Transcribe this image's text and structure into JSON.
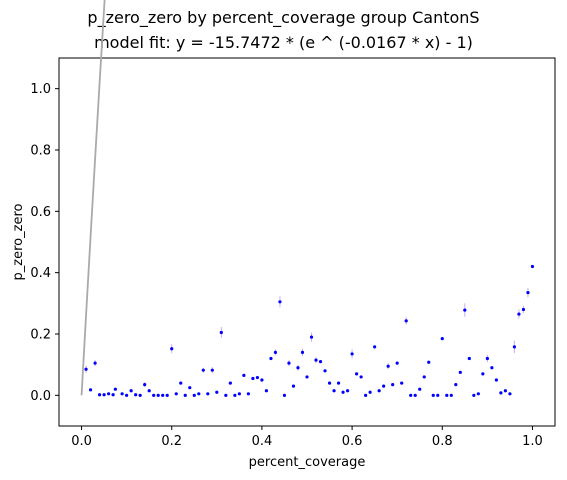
{
  "chart_data": {
    "type": "scatter",
    "title": "p_zero_zero by percent_coverage group CantonS",
    "subtitle": "model fit: y = -15.7472 * (e ^ (-0.0167 * x) - 1)",
    "xlabel": "percent_coverage",
    "ylabel": "p_zero_zero",
    "xlim": [
      -0.05,
      1.05
    ],
    "ylim": [
      -0.1,
      1.1
    ],
    "xticks": [
      0.0,
      0.2,
      0.4,
      0.6,
      0.8,
      1.0
    ],
    "yticks": [
      0.0,
      0.2,
      0.4,
      0.6,
      0.8,
      1.0
    ],
    "xtick_labels": [
      "0.0",
      "0.2",
      "0.4",
      "0.6",
      "0.8",
      "1.0"
    ],
    "ytick_labels": [
      "0.0",
      "0.2",
      "0.4",
      "0.6",
      "0.8",
      "1.0"
    ],
    "grid": false,
    "point_color": "#0000ff",
    "error_color": "#ccaaff",
    "fit_color": "#aaaaaa",
    "fit": {
      "a": -15.7472,
      "b": -0.0167,
      "x_range": [
        0.0,
        1.0
      ]
    },
    "points": [
      {
        "x": 0.01,
        "y": 0.085,
        "err": 0.012
      },
      {
        "x": 0.02,
        "y": 0.018,
        "err": 0.0
      },
      {
        "x": 0.03,
        "y": 0.105,
        "err": 0.01
      },
      {
        "x": 0.04,
        "y": 0.002,
        "err": 0.0
      },
      {
        "x": 0.05,
        "y": 0.002,
        "err": 0.0
      },
      {
        "x": 0.06,
        "y": 0.005,
        "err": 0.0
      },
      {
        "x": 0.07,
        "y": 0.002,
        "err": 0.0
      },
      {
        "x": 0.075,
        "y": 0.02,
        "err": 0.0
      },
      {
        "x": 0.09,
        "y": 0.005,
        "err": 0.0
      },
      {
        "x": 0.1,
        "y": 0.0,
        "err": 0.0
      },
      {
        "x": 0.11,
        "y": 0.015,
        "err": 0.0
      },
      {
        "x": 0.12,
        "y": 0.002,
        "err": 0.0
      },
      {
        "x": 0.13,
        "y": 0.0,
        "err": 0.0
      },
      {
        "x": 0.14,
        "y": 0.035,
        "err": 0.008
      },
      {
        "x": 0.15,
        "y": 0.015,
        "err": 0.0
      },
      {
        "x": 0.16,
        "y": 0.0,
        "err": 0.0
      },
      {
        "x": 0.17,
        "y": 0.0,
        "err": 0.0
      },
      {
        "x": 0.18,
        "y": 0.0,
        "err": 0.0
      },
      {
        "x": 0.19,
        "y": 0.0,
        "err": 0.0
      },
      {
        "x": 0.2,
        "y": 0.152,
        "err": 0.015
      },
      {
        "x": 0.21,
        "y": 0.005,
        "err": 0.0
      },
      {
        "x": 0.22,
        "y": 0.04,
        "err": 0.0
      },
      {
        "x": 0.23,
        "y": 0.0,
        "err": 0.0
      },
      {
        "x": 0.24,
        "y": 0.025,
        "err": 0.0
      },
      {
        "x": 0.25,
        "y": 0.0,
        "err": 0.0
      },
      {
        "x": 0.26,
        "y": 0.005,
        "err": 0.0
      },
      {
        "x": 0.27,
        "y": 0.082,
        "err": 0.008
      },
      {
        "x": 0.28,
        "y": 0.005,
        "err": 0.0
      },
      {
        "x": 0.29,
        "y": 0.082,
        "err": 0.01
      },
      {
        "x": 0.3,
        "y": 0.01,
        "err": 0.0
      },
      {
        "x": 0.31,
        "y": 0.205,
        "err": 0.018
      },
      {
        "x": 0.32,
        "y": 0.0,
        "err": 0.0
      },
      {
        "x": 0.33,
        "y": 0.04,
        "err": 0.0
      },
      {
        "x": 0.34,
        "y": 0.0,
        "err": 0.0
      },
      {
        "x": 0.35,
        "y": 0.005,
        "err": 0.0
      },
      {
        "x": 0.36,
        "y": 0.065,
        "err": 0.0
      },
      {
        "x": 0.37,
        "y": 0.005,
        "err": 0.0
      },
      {
        "x": 0.38,
        "y": 0.055,
        "err": 0.0
      },
      {
        "x": 0.39,
        "y": 0.058,
        "err": 0.0
      },
      {
        "x": 0.4,
        "y": 0.05,
        "err": 0.0
      },
      {
        "x": 0.41,
        "y": 0.015,
        "err": 0.0
      },
      {
        "x": 0.42,
        "y": 0.12,
        "err": 0.0
      },
      {
        "x": 0.43,
        "y": 0.14,
        "err": 0.01
      },
      {
        "x": 0.44,
        "y": 0.305,
        "err": 0.018
      },
      {
        "x": 0.45,
        "y": 0.0,
        "err": 0.0
      },
      {
        "x": 0.46,
        "y": 0.105,
        "err": 0.01
      },
      {
        "x": 0.47,
        "y": 0.03,
        "err": 0.0
      },
      {
        "x": 0.48,
        "y": 0.09,
        "err": 0.01
      },
      {
        "x": 0.49,
        "y": 0.14,
        "err": 0.012
      },
      {
        "x": 0.5,
        "y": 0.06,
        "err": 0.0
      },
      {
        "x": 0.51,
        "y": 0.19,
        "err": 0.015
      },
      {
        "x": 0.52,
        "y": 0.115,
        "err": 0.01
      },
      {
        "x": 0.53,
        "y": 0.11,
        "err": 0.0
      },
      {
        "x": 0.54,
        "y": 0.08,
        "err": 0.0
      },
      {
        "x": 0.55,
        "y": 0.04,
        "err": 0.0
      },
      {
        "x": 0.56,
        "y": 0.015,
        "err": 0.0
      },
      {
        "x": 0.57,
        "y": 0.04,
        "err": 0.0
      },
      {
        "x": 0.58,
        "y": 0.01,
        "err": 0.0
      },
      {
        "x": 0.59,
        "y": 0.015,
        "err": 0.0
      },
      {
        "x": 0.6,
        "y": 0.135,
        "err": 0.015
      },
      {
        "x": 0.61,
        "y": 0.07,
        "err": 0.0
      },
      {
        "x": 0.62,
        "y": 0.06,
        "err": 0.0
      },
      {
        "x": 0.63,
        "y": 0.0,
        "err": 0.0
      },
      {
        "x": 0.64,
        "y": 0.01,
        "err": 0.0
      },
      {
        "x": 0.65,
        "y": 0.158,
        "err": 0.0
      },
      {
        "x": 0.66,
        "y": 0.015,
        "err": 0.0
      },
      {
        "x": 0.67,
        "y": 0.03,
        "err": 0.0
      },
      {
        "x": 0.68,
        "y": 0.095,
        "err": 0.01
      },
      {
        "x": 0.69,
        "y": 0.035,
        "err": 0.0
      },
      {
        "x": 0.7,
        "y": 0.105,
        "err": 0.0
      },
      {
        "x": 0.71,
        "y": 0.04,
        "err": 0.0
      },
      {
        "x": 0.72,
        "y": 0.243,
        "err": 0.012
      },
      {
        "x": 0.73,
        "y": 0.0,
        "err": 0.0
      },
      {
        "x": 0.74,
        "y": 0.0,
        "err": 0.0
      },
      {
        "x": 0.75,
        "y": 0.02,
        "err": 0.0
      },
      {
        "x": 0.76,
        "y": 0.06,
        "err": 0.0
      },
      {
        "x": 0.77,
        "y": 0.108,
        "err": 0.0
      },
      {
        "x": 0.78,
        "y": 0.0,
        "err": 0.0
      },
      {
        "x": 0.79,
        "y": 0.0,
        "err": 0.0
      },
      {
        "x": 0.8,
        "y": 0.185,
        "err": 0.0
      },
      {
        "x": 0.81,
        "y": 0.0,
        "err": 0.0
      },
      {
        "x": 0.82,
        "y": 0.0,
        "err": 0.0
      },
      {
        "x": 0.83,
        "y": 0.035,
        "err": 0.0
      },
      {
        "x": 0.84,
        "y": 0.075,
        "err": 0.0
      },
      {
        "x": 0.85,
        "y": 0.278,
        "err": 0.022
      },
      {
        "x": 0.86,
        "y": 0.12,
        "err": 0.0
      },
      {
        "x": 0.87,
        "y": 0.0,
        "err": 0.0
      },
      {
        "x": 0.88,
        "y": 0.005,
        "err": 0.0
      },
      {
        "x": 0.89,
        "y": 0.07,
        "err": 0.0
      },
      {
        "x": 0.9,
        "y": 0.12,
        "err": 0.012
      },
      {
        "x": 0.91,
        "y": 0.09,
        "err": 0.0
      },
      {
        "x": 0.92,
        "y": 0.05,
        "err": 0.0
      },
      {
        "x": 0.93,
        "y": 0.008,
        "err": 0.0
      },
      {
        "x": 0.94,
        "y": 0.015,
        "err": 0.0
      },
      {
        "x": 0.95,
        "y": 0.005,
        "err": 0.0
      },
      {
        "x": 0.96,
        "y": 0.158,
        "err": 0.02
      },
      {
        "x": 0.97,
        "y": 0.265,
        "err": 0.015
      },
      {
        "x": 0.98,
        "y": 0.28,
        "err": 0.012
      },
      {
        "x": 0.99,
        "y": 0.335,
        "err": 0.015
      },
      {
        "x": 1.0,
        "y": 0.42,
        "err": 0.0
      }
    ]
  }
}
